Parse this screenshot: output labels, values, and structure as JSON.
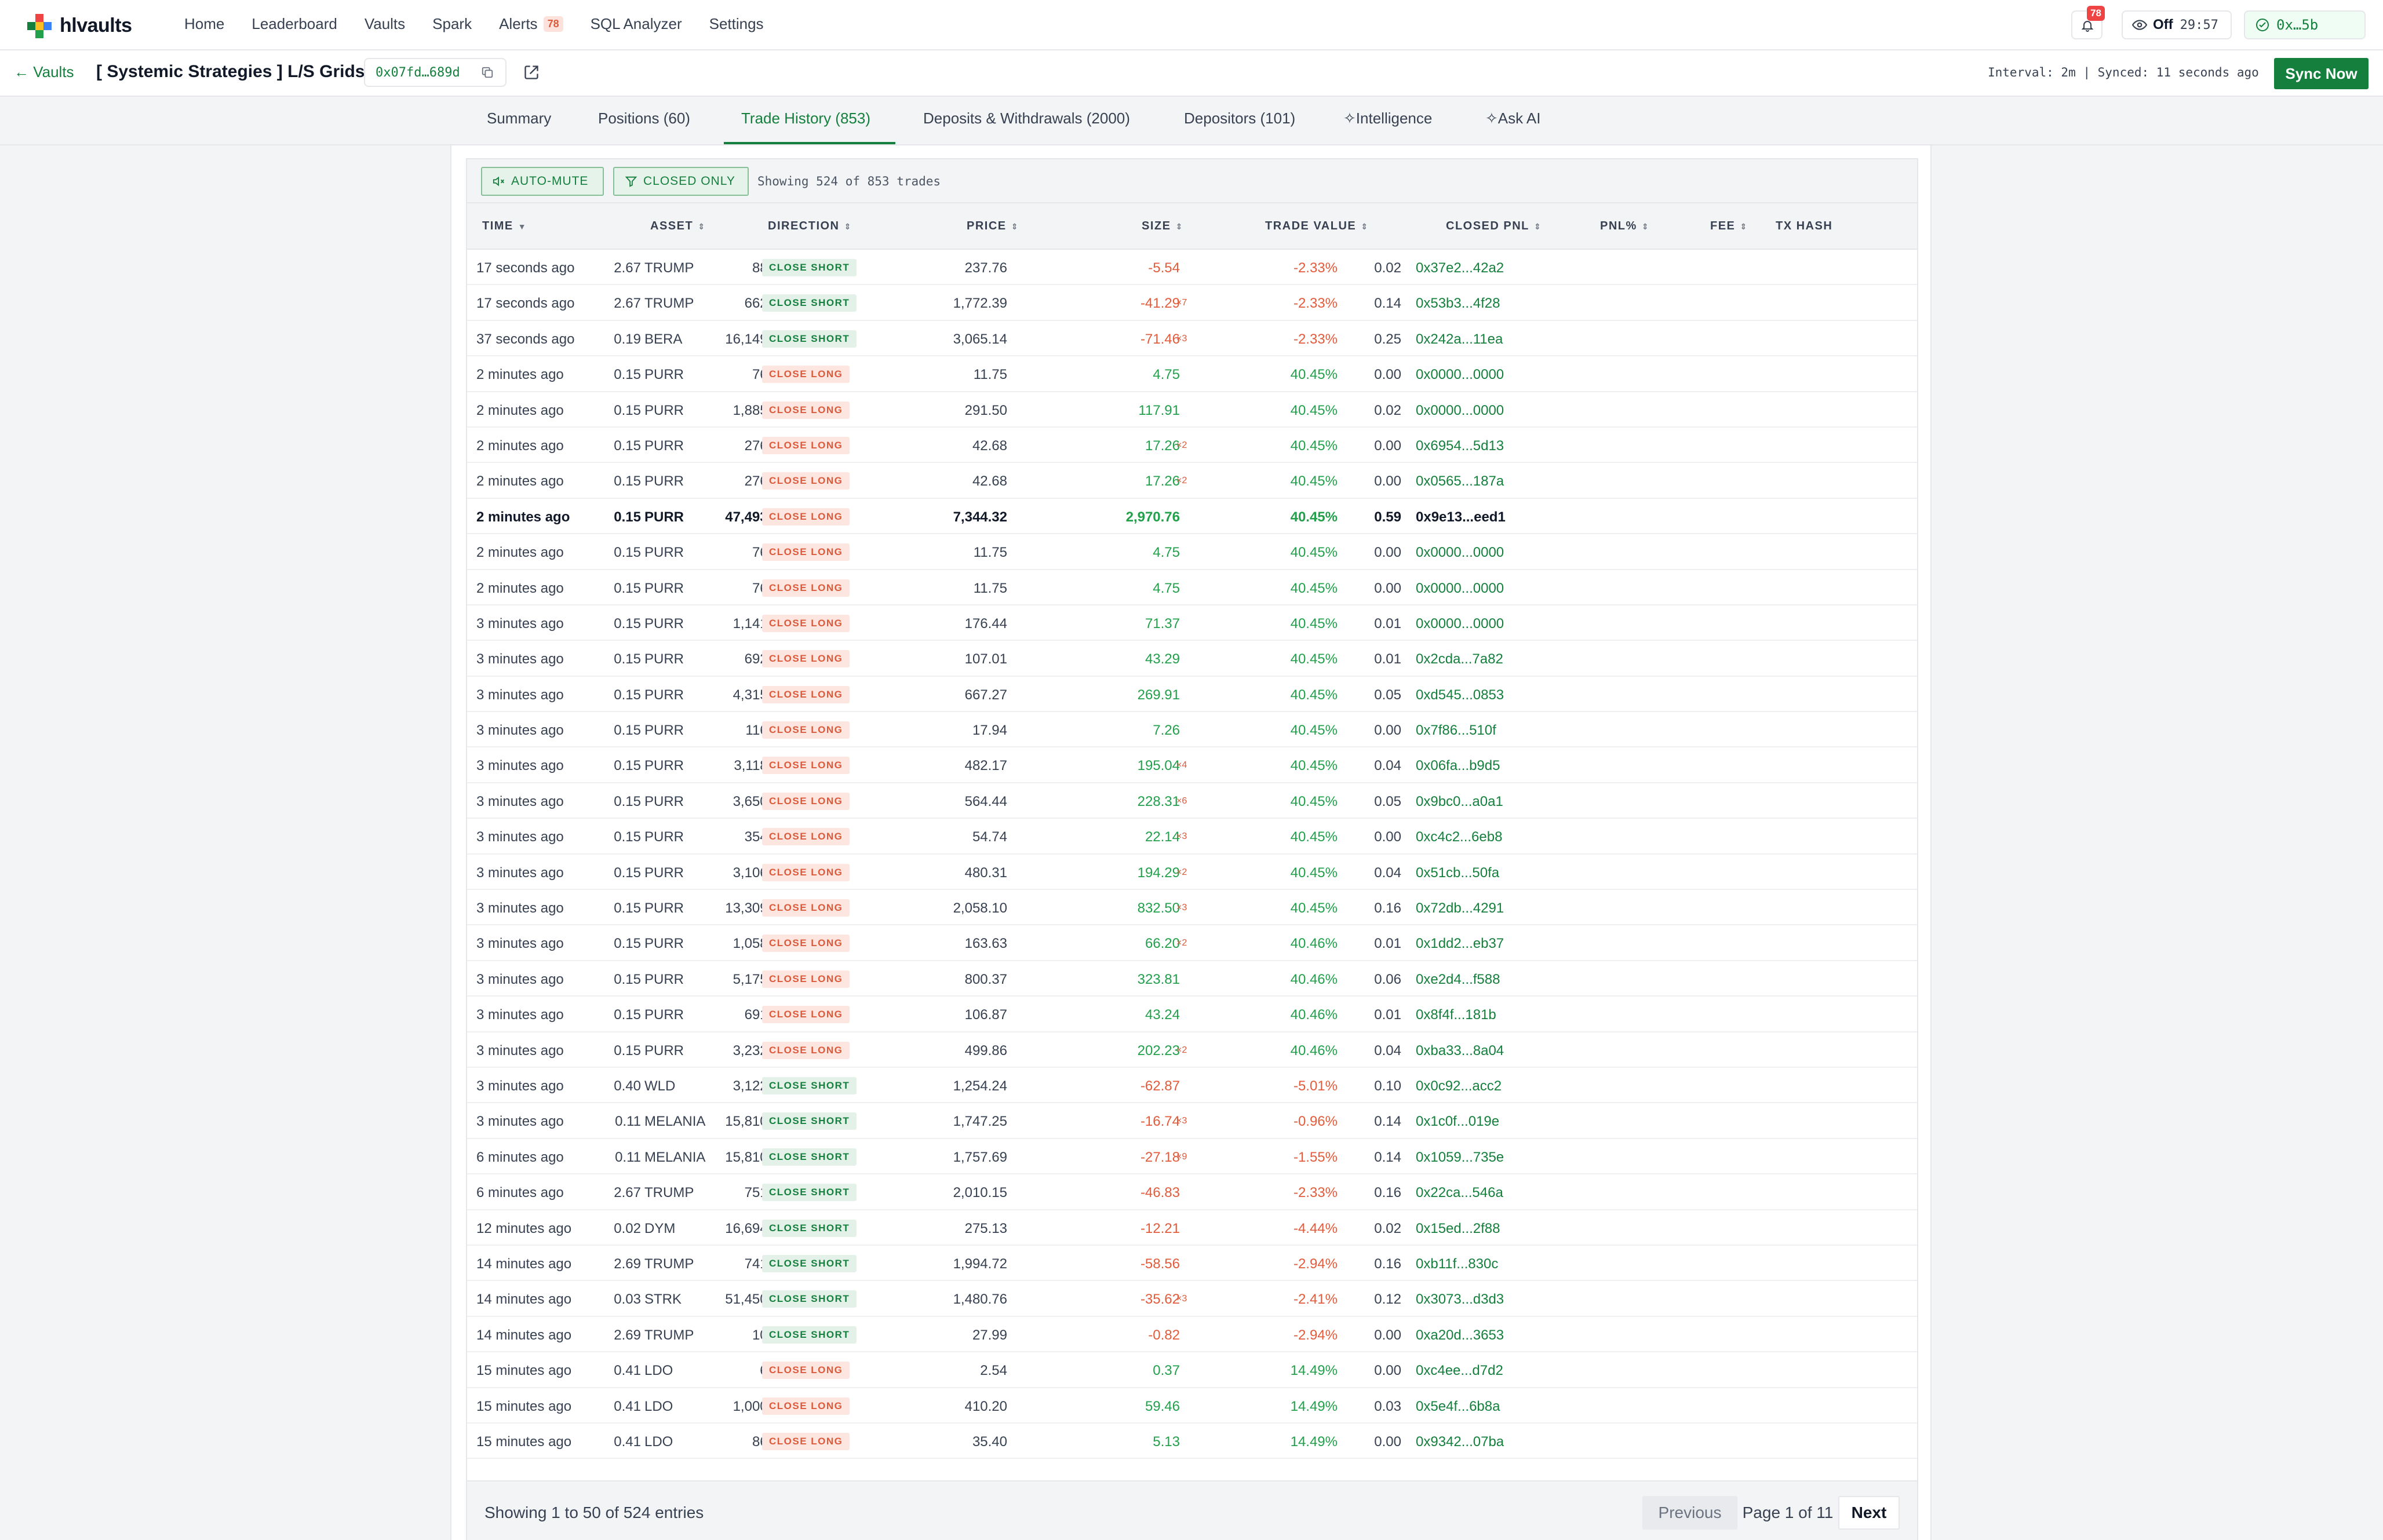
{
  "brand": {
    "name": "hlvaults"
  },
  "nav": {
    "items": [
      {
        "label": "Home"
      },
      {
        "label": "Leaderboard"
      },
      {
        "label": "Vaults"
      },
      {
        "label": "Spark"
      },
      {
        "label": "Alerts",
        "badge": "78"
      },
      {
        "label": "SQL Analyzer"
      },
      {
        "label": "Settings"
      }
    ],
    "bell_badge": "78",
    "off_label": "Off",
    "timer": "29:57",
    "wallet_label": "0x…5b"
  },
  "subheader": {
    "back_label": "← Vaults",
    "vault_title": "[ Systemic Strategies ] L/S Grids",
    "address": "0x07fd…689d",
    "sync_info": "Interval: 2m  |  Synced: 11 seconds ago",
    "sync_button": "Sync Now"
  },
  "tabs": [
    {
      "label": "Summary"
    },
    {
      "label": "Positions (60)"
    },
    {
      "label": "Trade History (853)"
    },
    {
      "label": "Deposits & Withdrawals (2000)"
    },
    {
      "label": "Depositors (101)"
    },
    {
      "label": "Intelligence"
    },
    {
      "label": "Ask AI"
    }
  ],
  "toolbar": {
    "auto_mute": "AUTO-MUTE",
    "closed_only": "CLOSED ONLY",
    "showing": "Showing 524 of 853 trades"
  },
  "columns": {
    "time": "TIME",
    "asset": "ASSET",
    "direction": "DIRECTION",
    "price": "PRICE",
    "size": "SIZE",
    "trade_value": "TRADE VALUE",
    "closed_pnl": "CLOSED PNL",
    "pnl_pct": "PNL%",
    "fee": "FEE",
    "tx_hash": "TX HASH"
  },
  "colors": {
    "accent": "#15803d",
    "positive": "#22a04b",
    "negative": "#e25c3c",
    "danger": "#ef4444"
  },
  "rows": [
    {
      "time": "17 seconds ago",
      "asset": "TRUMP",
      "dir": "CLOSE SHORT",
      "price": "2.67",
      "size": "88.90",
      "mult": "",
      "tv": "237.76",
      "pnl": "-5.54",
      "pct": "-2.33%",
      "fee": "0.02",
      "hash": "0x37e2...42a2"
    },
    {
      "time": "17 seconds ago",
      "asset": "TRUMP",
      "dir": "CLOSE SHORT",
      "price": "2.67",
      "size": "662.70",
      "mult": "×7",
      "tv": "1,772.39",
      "pnl": "-41.29",
      "pct": "-2.33%",
      "fee": "0.14",
      "hash": "0x53b3...4f28"
    },
    {
      "time": "37 seconds ago",
      "asset": "BERA",
      "dir": "CLOSE SHORT",
      "price": "0.19",
      "size": "16,149.30",
      "mult": "×3",
      "tv": "3,065.14",
      "pnl": "-71.46",
      "pct": "-2.33%",
      "fee": "0.25",
      "hash": "0x242a...11ea"
    },
    {
      "time": "2 minutes ago",
      "asset": "PURR",
      "dir": "CLOSE LONG",
      "price": "0.15",
      "size": "76.00",
      "mult": "",
      "tv": "11.75",
      "pnl": "4.75",
      "pct": "40.45%",
      "fee": "0.00",
      "hash": "0x0000...0000"
    },
    {
      "time": "2 minutes ago",
      "asset": "PURR",
      "dir": "CLOSE LONG",
      "price": "0.15",
      "size": "1,885.00",
      "mult": "",
      "tv": "291.50",
      "pnl": "117.91",
      "pct": "40.45%",
      "fee": "0.02",
      "hash": "0x0000...0000"
    },
    {
      "time": "2 minutes ago",
      "asset": "PURR",
      "dir": "CLOSE LONG",
      "price": "0.15",
      "size": "276.00",
      "mult": "×2",
      "tv": "42.68",
      "pnl": "17.26",
      "pct": "40.45%",
      "fee": "0.00",
      "hash": "0x6954...5d13"
    },
    {
      "time": "2 minutes ago",
      "asset": "PURR",
      "dir": "CLOSE LONG",
      "price": "0.15",
      "size": "276.00",
      "mult": "×2",
      "tv": "42.68",
      "pnl": "17.26",
      "pct": "40.45%",
      "fee": "0.00",
      "hash": "0x0565...187a"
    },
    {
      "time": "2 minutes ago",
      "asset": "PURR",
      "dir": "CLOSE LONG",
      "price": "0.15",
      "size": "47,493.00",
      "mult": "",
      "tv": "7,344.32",
      "pnl": "2,970.76",
      "pct": "40.45%",
      "fee": "0.59",
      "hash": "0x9e13...eed1",
      "hl": true
    },
    {
      "time": "2 minutes ago",
      "asset": "PURR",
      "dir": "CLOSE LONG",
      "price": "0.15",
      "size": "76.00",
      "mult": "",
      "tv": "11.75",
      "pnl": "4.75",
      "pct": "40.45%",
      "fee": "0.00",
      "hash": "0x0000...0000"
    },
    {
      "time": "2 minutes ago",
      "asset": "PURR",
      "dir": "CLOSE LONG",
      "price": "0.15",
      "size": "76.00",
      "mult": "",
      "tv": "11.75",
      "pnl": "4.75",
      "pct": "40.45%",
      "fee": "0.00",
      "hash": "0x0000...0000"
    },
    {
      "time": "3 minutes ago",
      "asset": "PURR",
      "dir": "CLOSE LONG",
      "price": "0.15",
      "size": "1,141.00",
      "mult": "",
      "tv": "176.44",
      "pnl": "71.37",
      "pct": "40.45%",
      "fee": "0.01",
      "hash": "0x0000...0000"
    },
    {
      "time": "3 minutes ago",
      "asset": "PURR",
      "dir": "CLOSE LONG",
      "price": "0.15",
      "size": "692.00",
      "mult": "",
      "tv": "107.01",
      "pnl": "43.29",
      "pct": "40.45%",
      "fee": "0.01",
      "hash": "0x2cda...7a82"
    },
    {
      "time": "3 minutes ago",
      "asset": "PURR",
      "dir": "CLOSE LONG",
      "price": "0.15",
      "size": "4,315.00",
      "mult": "",
      "tv": "667.27",
      "pnl": "269.91",
      "pct": "40.45%",
      "fee": "0.05",
      "hash": "0xd545...0853"
    },
    {
      "time": "3 minutes ago",
      "asset": "PURR",
      "dir": "CLOSE LONG",
      "price": "0.15",
      "size": "116.00",
      "mult": "",
      "tv": "17.94",
      "pnl": "7.26",
      "pct": "40.45%",
      "fee": "0.00",
      "hash": "0x7f86...510f"
    },
    {
      "time": "3 minutes ago",
      "asset": "PURR",
      "dir": "CLOSE LONG",
      "price": "0.15",
      "size": "3,118.00",
      "mult": "×4",
      "tv": "482.17",
      "pnl": "195.04",
      "pct": "40.45%",
      "fee": "0.04",
      "hash": "0x06fa...b9d5"
    },
    {
      "time": "3 minutes ago",
      "asset": "PURR",
      "dir": "CLOSE LONG",
      "price": "0.15",
      "size": "3,650.00",
      "mult": "×6",
      "tv": "564.44",
      "pnl": "228.31",
      "pct": "40.45%",
      "fee": "0.05",
      "hash": "0x9bc0...a0a1"
    },
    {
      "time": "3 minutes ago",
      "asset": "PURR",
      "dir": "CLOSE LONG",
      "price": "0.15",
      "size": "354.00",
      "mult": "×3",
      "tv": "54.74",
      "pnl": "22.14",
      "pct": "40.45%",
      "fee": "0.00",
      "hash": "0xc4c2...6eb8"
    },
    {
      "time": "3 minutes ago",
      "asset": "PURR",
      "dir": "CLOSE LONG",
      "price": "0.15",
      "size": "3,106.00",
      "mult": "×2",
      "tv": "480.31",
      "pnl": "194.29",
      "pct": "40.45%",
      "fee": "0.04",
      "hash": "0x51cb...50fa"
    },
    {
      "time": "3 minutes ago",
      "asset": "PURR",
      "dir": "CLOSE LONG",
      "price": "0.15",
      "size": "13,309.00",
      "mult": "×3",
      "tv": "2,058.10",
      "pnl": "832.50",
      "pct": "40.45%",
      "fee": "0.16",
      "hash": "0x72db...4291"
    },
    {
      "time": "3 minutes ago",
      "asset": "PURR",
      "dir": "CLOSE LONG",
      "price": "0.15",
      "size": "1,058.00",
      "mult": "×2",
      "tv": "163.63",
      "pnl": "66.20",
      "pct": "40.46%",
      "fee": "0.01",
      "hash": "0x1dd2...eb37"
    },
    {
      "time": "3 minutes ago",
      "asset": "PURR",
      "dir": "CLOSE LONG",
      "price": "0.15",
      "size": "5,175.00",
      "mult": "",
      "tv": "800.37",
      "pnl": "323.81",
      "pct": "40.46%",
      "fee": "0.06",
      "hash": "0xe2d4...f588"
    },
    {
      "time": "3 minutes ago",
      "asset": "PURR",
      "dir": "CLOSE LONG",
      "price": "0.15",
      "size": "691.00",
      "mult": "",
      "tv": "106.87",
      "pnl": "43.24",
      "pct": "40.46%",
      "fee": "0.01",
      "hash": "0x8f4f...181b"
    },
    {
      "time": "3 minutes ago",
      "asset": "PURR",
      "dir": "CLOSE LONG",
      "price": "0.15",
      "size": "3,232.00",
      "mult": "×2",
      "tv": "499.86",
      "pnl": "202.23",
      "pct": "40.46%",
      "fee": "0.04",
      "hash": "0xba33...8a04"
    },
    {
      "time": "3 minutes ago",
      "asset": "WLD",
      "dir": "CLOSE SHORT",
      "price": "0.40",
      "size": "3,122.80",
      "mult": "",
      "tv": "1,254.24",
      "pnl": "-62.87",
      "pct": "-5.01%",
      "fee": "0.10",
      "hash": "0x0c92...acc2"
    },
    {
      "time": "3 minutes ago",
      "asset": "MELANIA",
      "dir": "CLOSE SHORT",
      "price": "0.11",
      "size": "15,810.80",
      "mult": "×3",
      "tv": "1,747.25",
      "pnl": "-16.74",
      "pct": "-0.96%",
      "fee": "0.14",
      "hash": "0x1c0f...019e"
    },
    {
      "time": "6 minutes ago",
      "asset": "MELANIA",
      "dir": "CLOSE SHORT",
      "price": "0.11",
      "size": "15,810.80",
      "mult": "×9",
      "tv": "1,757.69",
      "pnl": "-27.18",
      "pct": "-1.55%",
      "fee": "0.14",
      "hash": "0x1059...735e"
    },
    {
      "time": "6 minutes ago",
      "asset": "TRUMP",
      "dir": "CLOSE SHORT",
      "price": "2.67",
      "size": "751.60",
      "mult": "",
      "tv": "2,010.15",
      "pnl": "-46.83",
      "pct": "-2.33%",
      "fee": "0.16",
      "hash": "0x22ca...546a"
    },
    {
      "time": "12 minutes ago",
      "asset": "DYM",
      "dir": "CLOSE SHORT",
      "price": "0.02",
      "size": "16,694.50",
      "mult": "",
      "tv": "275.13",
      "pnl": "-12.21",
      "pct": "-4.44%",
      "fee": "0.02",
      "hash": "0x15ed...2f88"
    },
    {
      "time": "14 minutes ago",
      "asset": "TRUMP",
      "dir": "CLOSE SHORT",
      "price": "2.69",
      "size": "741.20",
      "mult": "",
      "tv": "1,994.72",
      "pnl": "-58.56",
      "pct": "-2.94%",
      "fee": "0.16",
      "hash": "0xb11f...830c"
    },
    {
      "time": "14 minutes ago",
      "asset": "STRK",
      "dir": "CLOSE SHORT",
      "price": "0.03",
      "size": "51,450.90",
      "mult": "×3",
      "tv": "1,480.76",
      "pnl": "-35.62",
      "pct": "-2.41%",
      "fee": "0.12",
      "hash": "0x3073...d3d3"
    },
    {
      "time": "14 minutes ago",
      "asset": "TRUMP",
      "dir": "CLOSE SHORT",
      "price": "2.69",
      "size": "10.40",
      "mult": "",
      "tv": "27.99",
      "pnl": "-0.82",
      "pct": "-2.94%",
      "fee": "0.00",
      "hash": "0xa20d...3653"
    },
    {
      "time": "15 minutes ago",
      "asset": "LDO",
      "dir": "CLOSE LONG",
      "price": "0.41",
      "size": "6.20",
      "mult": "",
      "tv": "2.54",
      "pnl": "0.37",
      "pct": "14.49%",
      "fee": "0.00",
      "hash": "0xc4ee...d7d2"
    },
    {
      "time": "15 minutes ago",
      "asset": "LDO",
      "dir": "CLOSE LONG",
      "price": "0.41",
      "size": "1,000.00",
      "mult": "",
      "tv": "410.20",
      "pnl": "59.46",
      "pct": "14.49%",
      "fee": "0.03",
      "hash": "0x5e4f...6b8a"
    },
    {
      "time": "15 minutes ago",
      "asset": "LDO",
      "dir": "CLOSE LONG",
      "price": "0.41",
      "size": "86.30",
      "mult": "",
      "tv": "35.40",
      "pnl": "5.13",
      "pct": "14.49%",
      "fee": "0.00",
      "hash": "0x9342...07ba"
    }
  ],
  "footer": {
    "showing": "Showing 1 to 50 of 524 entries",
    "previous": "Previous",
    "page": "Page 1 of 11",
    "next": "Next"
  }
}
